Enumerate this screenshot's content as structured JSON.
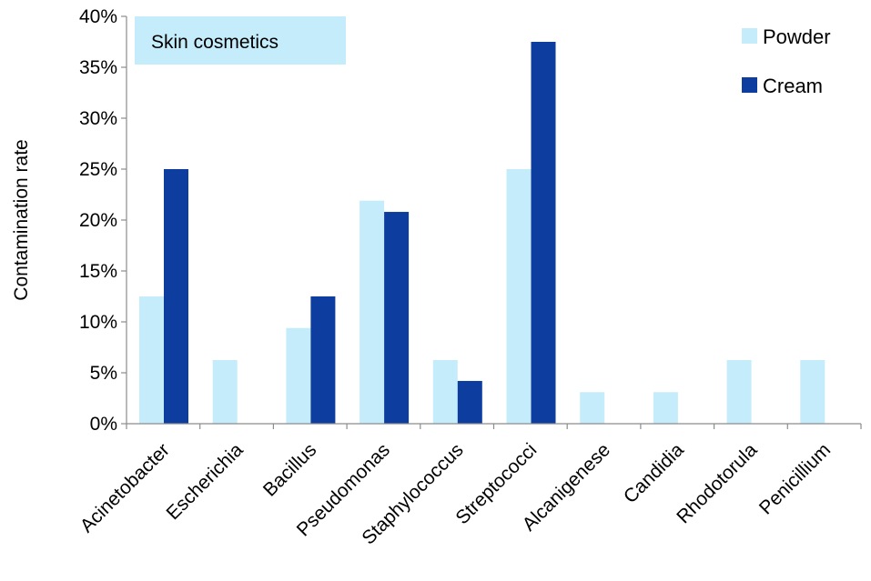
{
  "chart_data": {
    "type": "bar",
    "annotation": "Skin cosmetics",
    "ylabel": "Contamination rate",
    "xlabel": "",
    "ylim": [
      0,
      40
    ],
    "y_ticks": [
      0,
      5,
      10,
      15,
      20,
      25,
      30,
      35,
      40
    ],
    "y_tick_format": "percent",
    "grid": false,
    "legend_position": "top-right",
    "categories": [
      "Acinetobacter",
      "Escherichia",
      "Bacillus",
      "Pseudomonas",
      "Staphylococcus",
      "Streptococci",
      "Alcanigenese",
      "Candidia",
      "Rhodotorula",
      "Penicillium"
    ],
    "series": [
      {
        "name": "Powder",
        "color": "#c5ecfb",
        "values": [
          12.5,
          6.25,
          9.4,
          21.9,
          6.25,
          25,
          3.1,
          3.1,
          6.25,
          6.25
        ]
      },
      {
        "name": "Cream",
        "color": "#0d3d9e",
        "values": [
          25,
          0,
          12.5,
          20.8,
          4.2,
          37.5,
          0,
          0,
          0,
          0
        ]
      }
    ]
  }
}
